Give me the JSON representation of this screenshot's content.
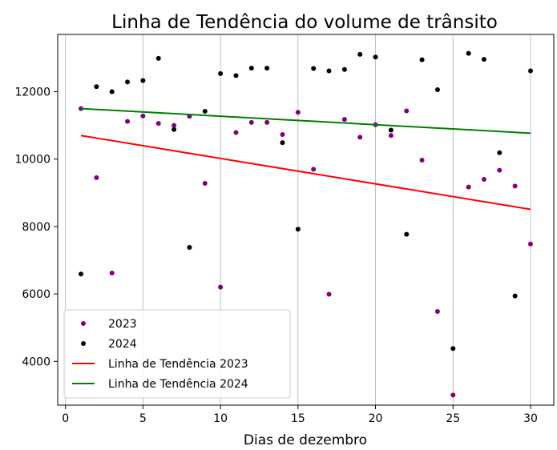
{
  "chart_data": {
    "type": "scatter",
    "title": "Linha de Tendência do volume de trânsito",
    "xlabel": "Dias de dezembro",
    "ylabel": "",
    "xlim": [
      -0.5,
      31.5
    ],
    "ylim": [
      2700,
      13700
    ],
    "xticks": [
      0,
      5,
      10,
      15,
      20,
      25,
      30
    ],
    "yticks": [
      4000,
      6000,
      8000,
      10000,
      12000
    ],
    "grid": "vertical",
    "legend_position": "lower-left",
    "x": [
      1,
      2,
      3,
      4,
      5,
      6,
      7,
      8,
      9,
      10,
      11,
      12,
      13,
      14,
      15,
      16,
      17,
      18,
      19,
      20,
      21,
      22,
      23,
      24,
      25,
      26,
      27,
      28,
      29,
      30
    ],
    "series": [
      {
        "name": "2023",
        "kind": "points",
        "color": "#800080",
        "values": [
          11500,
          9450,
          6620,
          11120,
          11280,
          11060,
          11000,
          11270,
          9280,
          6200,
          10790,
          11090,
          11090,
          10730,
          11390,
          9700,
          5990,
          11180,
          10650,
          11020,
          10700,
          11430,
          9970,
          5480,
          3000,
          9170,
          9400,
          9670,
          9200,
          7480
        ]
      },
      {
        "name": "2024",
        "kind": "points",
        "color": "#000000",
        "values": [
          6590,
          12150,
          12000,
          12290,
          12330,
          12990,
          10880,
          7380,
          11420,
          12540,
          12480,
          12700,
          12700,
          10490,
          7920,
          12690,
          12620,
          12660,
          13110,
          13030,
          10860,
          7770,
          12950,
          12060,
          4380,
          13140,
          12960,
          10190,
          5940,
          12620
        ]
      },
      {
        "name": "Linha de Tendência 2023",
        "kind": "line",
        "color": "#ff0000",
        "x": [
          1,
          30
        ],
        "values": [
          10700,
          8510
        ]
      },
      {
        "name": "Linha de Tendência 2024",
        "kind": "line",
        "color": "#008000",
        "x": [
          1,
          30
        ],
        "values": [
          11500,
          10770
        ]
      }
    ]
  }
}
